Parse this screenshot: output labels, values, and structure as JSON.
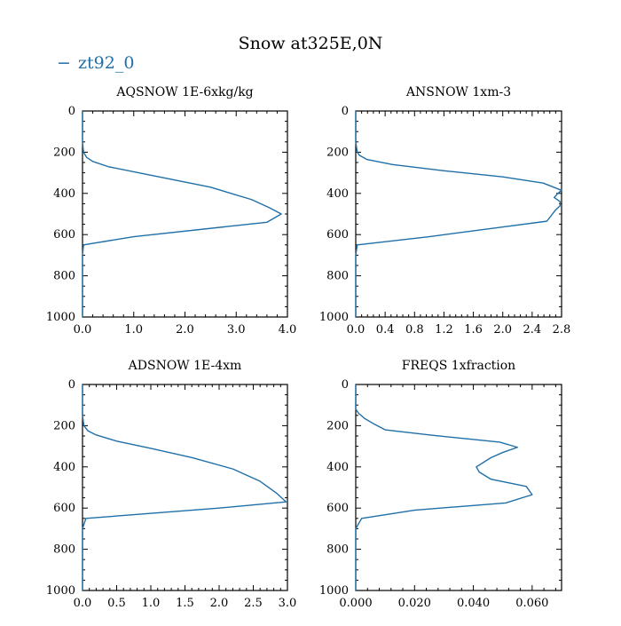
{
  "figure": {
    "title": "Snow at325E,0N",
    "legend_label": "zt92_0",
    "legend_marker": "−",
    "series_color": "#1f6fa8"
  },
  "chart_data": [
    {
      "type": "line",
      "title": "AQSNOW  1E-6xkg/kg",
      "xlim": [
        0,
        4
      ],
      "ylim": [
        1000,
        0
      ],
      "xticks": [
        "0.0",
        "1.0",
        "2.0",
        "3.0",
        "4.0"
      ],
      "yticks": [
        "0",
        "200",
        "400",
        "600",
        "800",
        "1000"
      ],
      "series": [
        {
          "x": [
            0,
            0,
            0.02,
            0.08,
            0.2,
            0.5,
            1.3,
            2.5,
            3.3,
            3.65,
            3.88,
            3.6,
            1.0,
            0.02,
            0,
            0
          ],
          "y": [
            0,
            150,
            200,
            225,
            245,
            270,
            310,
            370,
            430,
            470,
            500,
            540,
            610,
            650,
            700,
            1000
          ]
        }
      ]
    },
    {
      "type": "line",
      "title": "ANSNOW  1xm-3",
      "xlim": [
        0,
        2.8
      ],
      "ylim": [
        1000,
        0
      ],
      "xticks": [
        "0.0",
        "0.4",
        "0.8",
        "1.2",
        "1.6",
        "2.0",
        "2.4",
        "2.8"
      ],
      "yticks": [
        "0",
        "200",
        "400",
        "600",
        "800",
        "1000"
      ],
      "series": [
        {
          "x": [
            0,
            0,
            0.02,
            0.05,
            0.15,
            0.5,
            1.2,
            2.0,
            2.55,
            2.8,
            2.75,
            2.7,
            2.78,
            2.78,
            2.72,
            2.6,
            1.0,
            0.02,
            0,
            0
          ],
          "y": [
            0,
            150,
            200,
            215,
            235,
            260,
            290,
            320,
            350,
            385,
            400,
            420,
            440,
            460,
            480,
            535,
            610,
            650,
            700,
            1000
          ]
        }
      ]
    },
    {
      "type": "line",
      "title": "ADSNOW  1E-4xm",
      "xlim": [
        0,
        3
      ],
      "ylim": [
        1000,
        0
      ],
      "xticks": [
        "0.0",
        "0.5",
        "1.0",
        "1.5",
        "2.0",
        "2.5",
        "3.0"
      ],
      "yticks": [
        "0",
        "200",
        "400",
        "600",
        "800",
        "1000"
      ],
      "series": [
        {
          "x": [
            0,
            0,
            0.02,
            0.08,
            0.2,
            0.5,
            1.0,
            1.6,
            2.2,
            2.6,
            2.85,
            2.98,
            2.0,
            0.05,
            0,
            0
          ],
          "y": [
            0,
            150,
            200,
            225,
            245,
            275,
            310,
            355,
            410,
            470,
            530,
            570,
            600,
            650,
            700,
            1000
          ]
        }
      ]
    },
    {
      "type": "line",
      "title": "FREQS  1xfraction",
      "xlim": [
        0,
        0.07
      ],
      "ylim": [
        1000,
        0
      ],
      "xticks": [
        "0.000",
        "0.020",
        "0.040",
        "0.060"
      ],
      "yticks": [
        "0",
        "200",
        "400",
        "600",
        "800",
        "1000"
      ],
      "series": [
        {
          "x": [
            0,
            0,
            0.001,
            0.003,
            0.006,
            0.01,
            0.025,
            0.049,
            0.055,
            0.05,
            0.046,
            0.041,
            0.042,
            0.046,
            0.058,
            0.06,
            0.051,
            0.02,
            0.002,
            0,
            0
          ],
          "y": [
            0,
            120,
            140,
            165,
            190,
            220,
            245,
            280,
            305,
            330,
            355,
            400,
            425,
            460,
            495,
            535,
            575,
            610,
            650,
            700,
            1000
          ]
        }
      ]
    }
  ]
}
